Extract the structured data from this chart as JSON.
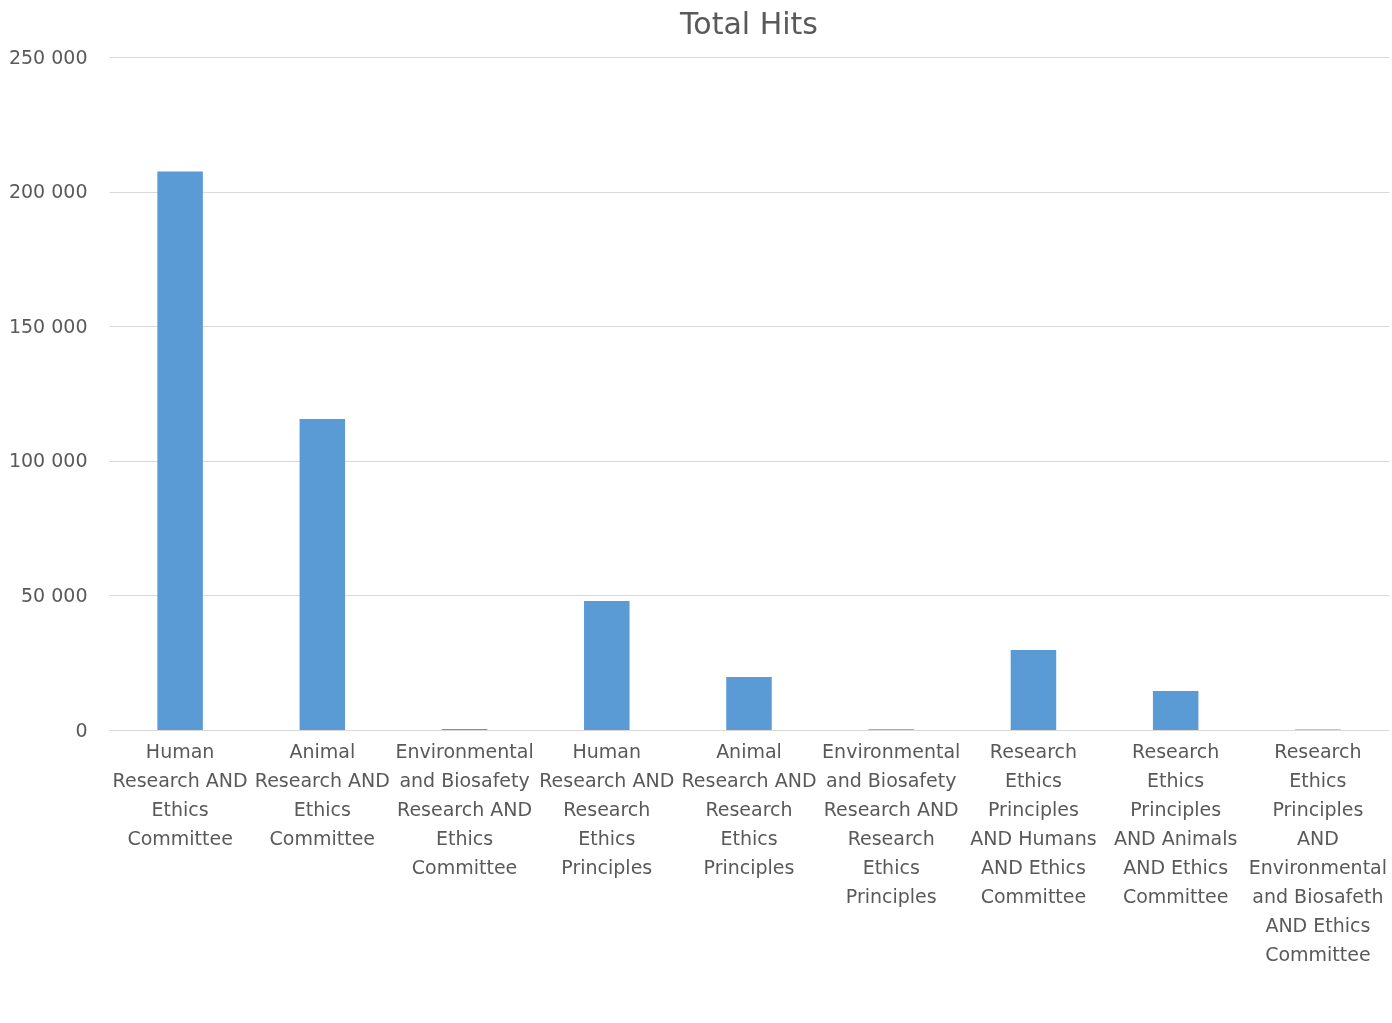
{
  "chart_data": {
    "type": "bar",
    "title": "Total Hits",
    "categories": [
      "Human Research AND Ethics Committee",
      "Animal Research AND Ethics Committee",
      "Environmental and Biosafety Research AND Ethics Committee",
      "Human Research AND Research Ethics Principles",
      "Animal Research AND Research Ethics Principles",
      "Environmental and Biosafety Research AND Research Ethics Principles",
      "Research Ethics Principles AND Humans AND Ethics Committee",
      "Research Ethics Principles AND Animals AND Ethics Committee",
      "Research Ethics Principles AND Environmental and Biosafeth AND Ethics Committee"
    ],
    "values": [
      207500,
      115500,
      400,
      47900,
      19700,
      300,
      29700,
      14500,
      200
    ],
    "color": "#5b9bd5",
    "ylim": [
      0,
      250000
    ],
    "yticks": [
      {
        "value": 0,
        "label": "0"
      },
      {
        "value": 50000,
        "label": "50 000"
      },
      {
        "value": 100000,
        "label": "100 000"
      },
      {
        "value": 150000,
        "label": "150 000"
      },
      {
        "value": 200000,
        "label": "200 000"
      },
      {
        "value": 250000,
        "label": "250 000"
      }
    ],
    "grid": "y"
  }
}
